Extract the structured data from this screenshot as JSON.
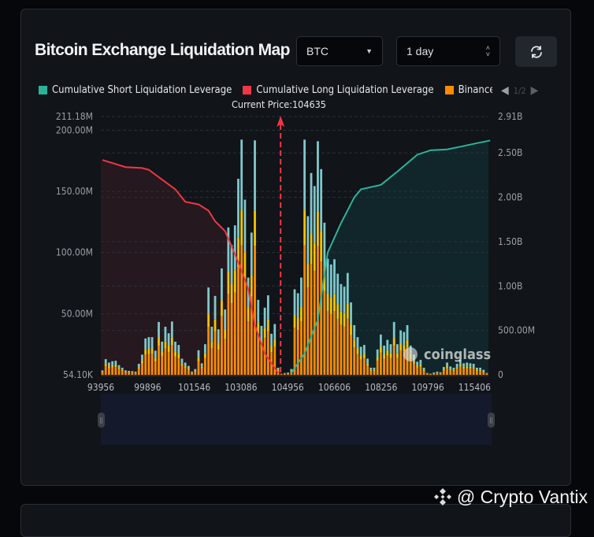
{
  "header": {
    "title": "Bitcoin Exchange Liquidation Map",
    "coin_select": "BTC",
    "range_select": "1 day"
  },
  "legend": {
    "items": [
      {
        "label": "Cumulative Short Liquidation Leverage",
        "color": "#2bb39a"
      },
      {
        "label": "Cumulative Long Liquidation Leverage",
        "color": "#f23645"
      },
      {
        "label": "Binance",
        "color": "#ff8c00"
      }
    ],
    "page": "1/2"
  },
  "watermark": {
    "chart": "coinglass",
    "author": "@ Crypto Vantix"
  },
  "chart_data": {
    "type": "bar",
    "current_price_label": "Current Price:104635",
    "x_tick_labels": [
      "93956",
      "99896",
      "101546",
      "103086",
      "104956",
      "106606",
      "108256",
      "109796",
      "115406"
    ],
    "y_left_ticks": [
      "211.18M",
      "200.00M",
      "150.00M",
      "100.00M",
      "50.00M",
      "54.10K"
    ],
    "y_left_values_M": [
      211.18,
      200,
      150,
      100,
      50,
      0.0541
    ],
    "y_right_ticks": [
      "2.91B",
      "2.50B",
      "2.00B",
      "1.50B",
      "1.00B",
      "500.00M",
      "0"
    ],
    "y_right_values_B": [
      2.91,
      2.5,
      2.0,
      1.5,
      1.0,
      0.5,
      0
    ],
    "ylim_left_M": [
      0,
      211.18
    ],
    "ylim_right_B": [
      0,
      2.91
    ],
    "grid": true,
    "colors": {
      "binance": "#ff8c00",
      "other_exchange_1": "#f5c400",
      "other_exchange_2": "#7fc8cc",
      "short_line": "#2bb39a",
      "long_line": "#f23645",
      "short_fill": "#10262a",
      "long_fill": "#25181e"
    },
    "bar_totals_M": [
      3.6,
      12.8,
      10.0,
      11.1,
      11.5,
      7.9,
      5.8,
      3.6,
      3.2,
      3.0,
      2.6,
      9.0,
      16.5,
      29.7,
      30.8,
      30.8,
      19.7,
      43.2,
      27.1,
      39.3,
      34.0,
      43.6,
      27.1,
      24.4,
      13.2,
      10.0,
      7.3,
      2.6,
      4.7,
      20.1,
      9.4,
      25.0,
      71.4,
      39.3,
      64.5,
      37.2,
      87.0,
      53.4,
      120.5,
      106.2,
      122.2,
      160.3,
      192.3,
      143.2,
      79.5,
      116.3,
      191.7,
      61.3,
      40.0,
      54.9,
      65.0,
      33.6,
      41.5,
      5.8,
      0.9,
      1.5,
      1.9,
      4.7,
      69.9,
      66.7,
      79.5,
      192.3,
      129.7,
      165.0,
      154.3,
      191.0,
      168.2,
      124.4,
      94.9,
      90.2,
      94.5,
      82.7,
      74.2,
      72.0,
      83.3,
      59.2,
      40.6,
      30.8,
      22.9,
      24.4,
      13.2,
      5.8,
      5.8,
      20.7,
      32.9,
      23.9,
      28.6,
      25.0,
      43.2,
      25.0,
      36.3,
      35.0,
      40.6,
      23.9,
      16.5,
      10.7,
      12.2,
      5.8,
      1.5,
      0.9,
      1.9,
      2.6,
      2.1,
      6.4,
      10.0,
      6.8,
      5.8,
      9.0,
      12.2,
      9.4,
      10.0,
      9.4,
      9.0,
      5.8,
      5.8,
      4.1,
      1.5
    ],
    "stack_shares": {
      "binance": 0.55,
      "other_exchange_1": 0.15,
      "other_exchange_2": 0.3
    },
    "current_price_bar_index": 54,
    "series_lines": [
      {
        "name": "Cumulative Long Liquidation Leverage",
        "points_bar_index": [
          0,
          7,
          12,
          14,
          18,
          22,
          25,
          29,
          32,
          34,
          37,
          38.5,
          41,
          44,
          46,
          49,
          53
        ],
        "values_B": [
          2.42,
          2.34,
          2.33,
          2.31,
          2.2,
          2.09,
          1.95,
          1.92,
          1.85,
          1.73,
          1.62,
          1.49,
          1.27,
          0.97,
          0.56,
          0.24,
          0.02
        ]
      },
      {
        "name": "Cumulative Short Liquidation Leverage",
        "points_bar_index": [
          57,
          61,
          65,
          68,
          72,
          76,
          78,
          84,
          89,
          95,
          99,
          104,
          108,
          113,
          117
        ],
        "values_B": [
          0.02,
          0.24,
          0.62,
          1.38,
          1.71,
          2.0,
          2.09,
          2.14,
          2.29,
          2.48,
          2.53,
          2.54,
          2.57,
          2.61,
          2.64
        ]
      }
    ]
  }
}
